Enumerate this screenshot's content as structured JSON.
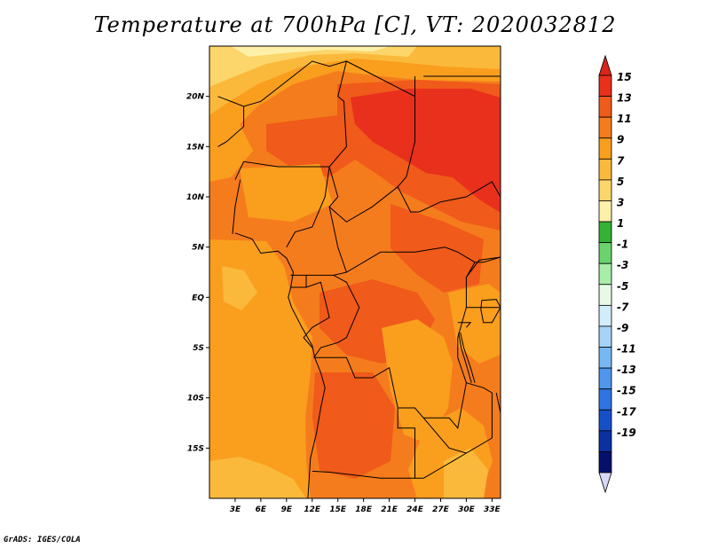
{
  "title": "Temperature at 700hPa [C], VT: 2020032812",
  "credit": "GrADS: IGES/COLA",
  "map": {
    "lon_range": [
      0,
      34
    ],
    "lat_range": [
      -20,
      25
    ],
    "lon_ticks": [
      {
        "value": 3,
        "label": "3E"
      },
      {
        "value": 6,
        "label": "6E"
      },
      {
        "value": 9,
        "label": "9E"
      },
      {
        "value": 12,
        "label": "12E"
      },
      {
        "value": 15,
        "label": "15E"
      },
      {
        "value": 18,
        "label": "18E"
      },
      {
        "value": 21,
        "label": "21E"
      },
      {
        "value": 24,
        "label": "24E"
      },
      {
        "value": 27,
        "label": "27E"
      },
      {
        "value": 30,
        "label": "30E"
      },
      {
        "value": 33,
        "label": "33E"
      }
    ],
    "lat_ticks": [
      {
        "value": 20,
        "label": "20N"
      },
      {
        "value": 15,
        "label": "15N"
      },
      {
        "value": 10,
        "label": "10N"
      },
      {
        "value": 5,
        "label": "5N"
      },
      {
        "value": 0,
        "label": "EQ"
      },
      {
        "value": -5,
        "label": "5S"
      },
      {
        "value": -10,
        "label": "10S"
      },
      {
        "value": -15,
        "label": "15S"
      }
    ]
  },
  "colorbar": {
    "labels": [
      "15",
      "13",
      "11",
      "9",
      "7",
      "5",
      "3",
      "1",
      "-1",
      "-3",
      "-5",
      "-7",
      "-9",
      "-11",
      "-13",
      "-15",
      "-17",
      "-19"
    ],
    "colors": [
      "#e8301c",
      "#f05a1a",
      "#f57c1c",
      "#fa9e1e",
      "#fbb93c",
      "#fcd66a",
      "#fdf0a8",
      "#33b233",
      "#6cd36c",
      "#a8eea8",
      "#e6fae6",
      "#d2ecfa",
      "#a6d4f6",
      "#78b8f2",
      "#4f96ec",
      "#2f74e0",
      "#1650c8",
      "#0b30a0",
      "#06106a"
    ],
    "top_arrow_color": "#d9261a",
    "bottom_arrow_color": "#d8d8f5"
  },
  "field_colors": {
    "t15": "#e8301c",
    "t13": "#f05a1a",
    "t11": "#f57c1c",
    "t9": "#fa9e1e",
    "t7": "#fbb93c",
    "t5": "#fcd66a",
    "t3": "#fdf0a8"
  }
}
